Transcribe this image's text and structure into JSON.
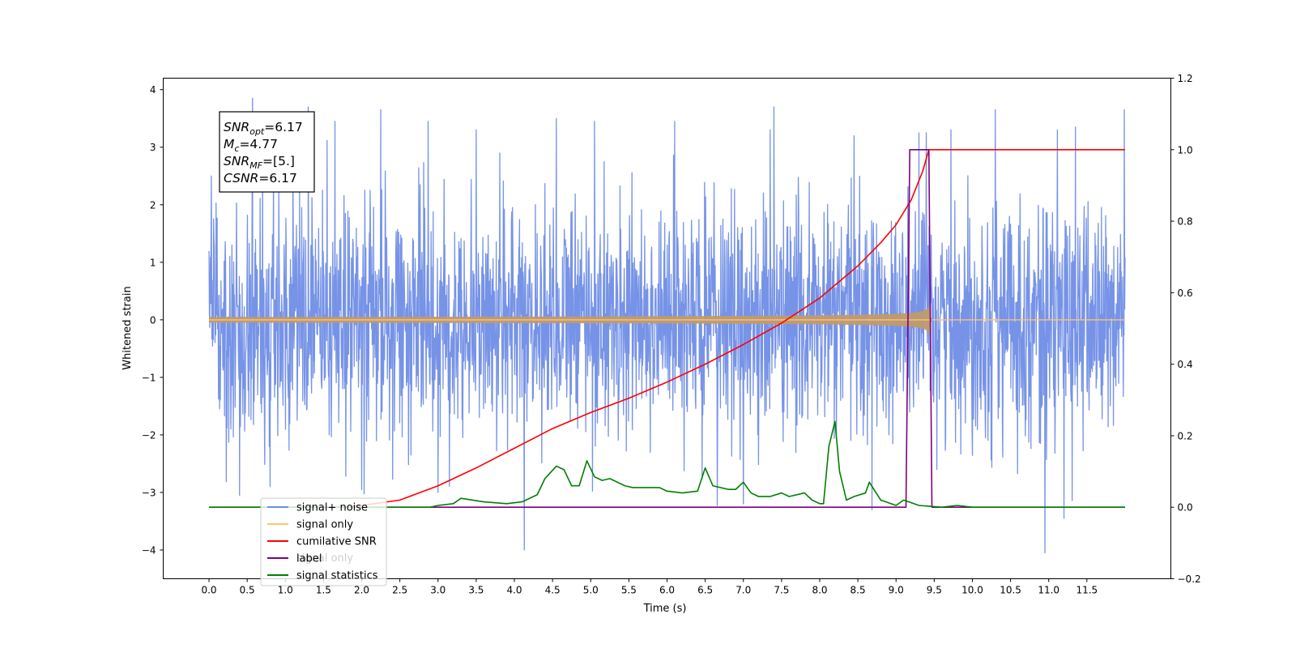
{
  "chart_data": {
    "type": "line",
    "title": "",
    "xlabel": "Time (s)",
    "ylabel": "Whitened strain",
    "ylabel_right": "",
    "xlim": [
      -0.6,
      12.6
    ],
    "ylim": [
      -4.5,
      4.2
    ],
    "ylim_right": [
      -0.2,
      1.2
    ],
    "x_ticks": [
      "0.0",
      "0.5",
      "1.0",
      "1.5",
      "2.0",
      "2.5",
      "3.0",
      "3.5",
      "4.0",
      "4.5",
      "5.0",
      "5.5",
      "6.0",
      "6.5",
      "7.0",
      "7.5",
      "8.0",
      "8.5",
      "9.0",
      "9.5",
      "10.0",
      "10.5",
      "11.0",
      "11.5"
    ],
    "y_ticks": [
      "4",
      "3",
      "2",
      "1",
      "0",
      "−1",
      "−2",
      "−3",
      "−4"
    ],
    "y_ticks_right": [
      "1.2",
      "1.0",
      "0.8",
      "0.6",
      "0.4",
      "0.2",
      "0.0",
      "−0.2"
    ],
    "grid": false,
    "legend_position": "lower-left",
    "legend": [
      {
        "label": "signal+ noise",
        "color": "#6f8de6"
      },
      {
        "label": "signal only",
        "color": "#ffc36e"
      },
      {
        "label": "cumilative SNR",
        "color": "#ff0000"
      },
      {
        "label": "label",
        "color": "#800080"
      },
      {
        "label": "signal statistics",
        "color": "#008000"
      }
    ],
    "legend_hidden_text": "signal only",
    "annotation": [
      {
        "main": "SNR",
        "sub": "opt",
        "value": "=6.17"
      },
      {
        "main": "M",
        "sub": "c",
        "value": "=4.77"
      },
      {
        "main": "SNR",
        "sub": "MF",
        "value": "=[5.]"
      },
      {
        "main": "CSNR",
        "sub": "",
        "value": "=6.17"
      }
    ],
    "series": [
      {
        "name": "signal+ noise",
        "axis": "left",
        "color": "#6f8de6",
        "kind": "noise",
        "x_range": [
          0.0,
          12.0
        ],
        "sigma": 1.0,
        "outliers": [
          [
            0.03,
            2.5
          ],
          [
            0.57,
            3.85
          ],
          [
            1.3,
            3.7
          ],
          [
            1.65,
            3.45
          ],
          [
            2.25,
            3.65
          ],
          [
            2.87,
            3.45
          ],
          [
            4.13,
            -4.0
          ],
          [
            4.55,
            3.5
          ],
          [
            7.4,
            3.7
          ],
          [
            9.3,
            3.25
          ],
          [
            10.3,
            3.65
          ],
          [
            10.95,
            -4.05
          ],
          [
            11.2,
            -3.45
          ],
          [
            11.35,
            3.35
          ],
          [
            11.99,
            3.65
          ],
          [
            0.4,
            -3.05
          ],
          [
            0.8,
            -2.9
          ],
          [
            5.05,
            3.45
          ],
          [
            8.45,
            3.2
          ],
          [
            3.5,
            3.3
          ],
          [
            6.1,
            3.45
          ],
          [
            2.0,
            -2.95
          ],
          [
            7.0,
            -3.2
          ],
          [
            3.0,
            -3.0
          ]
        ]
      },
      {
        "name": "signal only",
        "axis": "left",
        "color": "#ffc36e",
        "kind": "chirp",
        "x_range": [
          0.0,
          12.0
        ],
        "merger_time": 9.45,
        "peak_amplitude": 0.5
      },
      {
        "name": "cumilative SNR",
        "axis": "right",
        "color": "#ff0000",
        "x": [
          1.8,
          2.0,
          2.5,
          3.0,
          3.5,
          4.0,
          4.5,
          5.0,
          5.5,
          6.0,
          6.5,
          7.0,
          7.5,
          8.0,
          8.5,
          8.8,
          9.0,
          9.2,
          9.35,
          9.43,
          9.5,
          12.0
        ],
        "values": [
          0.0,
          0.005,
          0.02,
          0.06,
          0.11,
          0.165,
          0.22,
          0.265,
          0.305,
          0.35,
          0.4,
          0.455,
          0.515,
          0.585,
          0.675,
          0.74,
          0.79,
          0.86,
          0.94,
          1.0,
          1.0,
          1.0
        ]
      },
      {
        "name": "label",
        "axis": "right",
        "color": "#800080",
        "x": [
          0.0,
          9.13,
          9.18,
          9.43,
          9.47,
          9.52,
          12.0
        ],
        "values": [
          0.0,
          0.0,
          1.0,
          1.0,
          0.0,
          0.0,
          0.0
        ]
      },
      {
        "name": "signal statistics",
        "axis": "right",
        "color": "#008000",
        "x": [
          0.0,
          2.9,
          3.0,
          3.2,
          3.3,
          3.6,
          3.9,
          4.1,
          4.3,
          4.4,
          4.55,
          4.65,
          4.75,
          4.85,
          4.95,
          5.05,
          5.15,
          5.25,
          5.35,
          5.45,
          5.55,
          5.7,
          5.9,
          6.0,
          6.2,
          6.4,
          6.5,
          6.6,
          6.8,
          6.9,
          7.0,
          7.1,
          7.2,
          7.35,
          7.5,
          7.6,
          7.8,
          7.9,
          8.0,
          8.05,
          8.12,
          8.2,
          8.26,
          8.35,
          8.45,
          8.6,
          8.65,
          8.8,
          9.0,
          9.1,
          9.3,
          9.6,
          9.8,
          10.0,
          12.0
        ],
        "values": [
          0.0,
          0.0,
          0.005,
          0.01,
          0.025,
          0.015,
          0.01,
          0.015,
          0.035,
          0.08,
          0.115,
          0.105,
          0.06,
          0.06,
          0.13,
          0.085,
          0.075,
          0.08,
          0.07,
          0.06,
          0.055,
          0.055,
          0.055,
          0.045,
          0.04,
          0.045,
          0.11,
          0.06,
          0.05,
          0.05,
          0.07,
          0.04,
          0.03,
          0.03,
          0.04,
          0.03,
          0.04,
          0.02,
          0.01,
          0.01,
          0.17,
          0.24,
          0.1,
          0.02,
          0.03,
          0.04,
          0.07,
          0.02,
          0.005,
          0.02,
          0.005,
          0.0,
          0.005,
          0.0,
          0.0
        ]
      }
    ]
  }
}
